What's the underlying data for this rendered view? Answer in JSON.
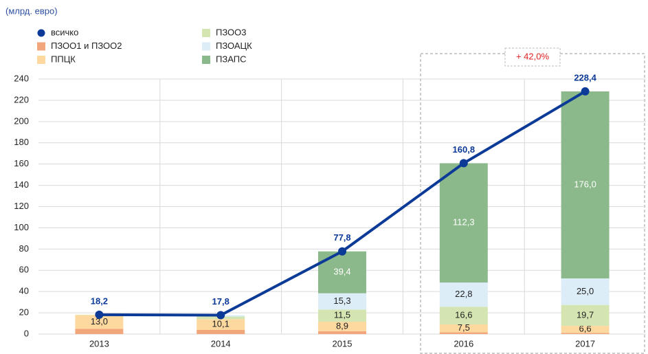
{
  "chart_data": {
    "type": "bar",
    "y_label": "(млрд. евро)",
    "annotation": "+ 42,0%",
    "categories": [
      "2013",
      "2014",
      "2015",
      "2016",
      "2017"
    ],
    "ylim": [
      0,
      240
    ],
    "yticks": [
      0,
      20,
      40,
      60,
      80,
      100,
      120,
      140,
      160,
      180,
      200,
      220,
      240
    ],
    "grid": true,
    "series": [
      {
        "name": "всичко",
        "type": "line",
        "color": "#0b3a97",
        "values": [
          18.2,
          17.8,
          77.8,
          160.8,
          228.4
        ],
        "value_labels": [
          "18,2",
          "17,8",
          "77,8",
          "160,8",
          "228,4"
        ]
      },
      {
        "name": "ПЗОО1 и ПЗОО2",
        "type": "bar",
        "color": "#f2a67c",
        "values": [
          4.9,
          3.9,
          2.7,
          1.6,
          1.1
        ]
      },
      {
        "name": "ППЦК",
        "type": "bar",
        "color": "#fdd9a0",
        "label_color": "#222222",
        "values": [
          13.0,
          10.1,
          8.9,
          7.5,
          6.6
        ],
        "value_labels": [
          "13,0",
          "10,1",
          "8,9",
          "7,5",
          "6,6"
        ]
      },
      {
        "name": "ПЗОО3",
        "type": "bar",
        "color": "#d5e5b1",
        "label_color": "#222222",
        "values": [
          0.3,
          2.5,
          11.5,
          16.6,
          19.7
        ],
        "value_labels": [
          null,
          null,
          "11,5",
          "16,6",
          "19,7"
        ]
      },
      {
        "name": "ПЗОАЦК",
        "type": "bar",
        "color": "#dcedf8",
        "label_color": "#222222",
        "values": [
          0,
          1.3,
          15.3,
          22.8,
          25.0
        ],
        "value_labels": [
          null,
          null,
          "15,3",
          "22,8",
          "25,0"
        ]
      },
      {
        "name": "ПЗАПС",
        "type": "bar",
        "color": "#8cb98b",
        "label_color": "#ffffff",
        "values": [
          0,
          0,
          39.4,
          112.3,
          176.0
        ],
        "value_labels": [
          null,
          null,
          "39,4",
          "112,3",
          "176,0"
        ]
      }
    ]
  }
}
